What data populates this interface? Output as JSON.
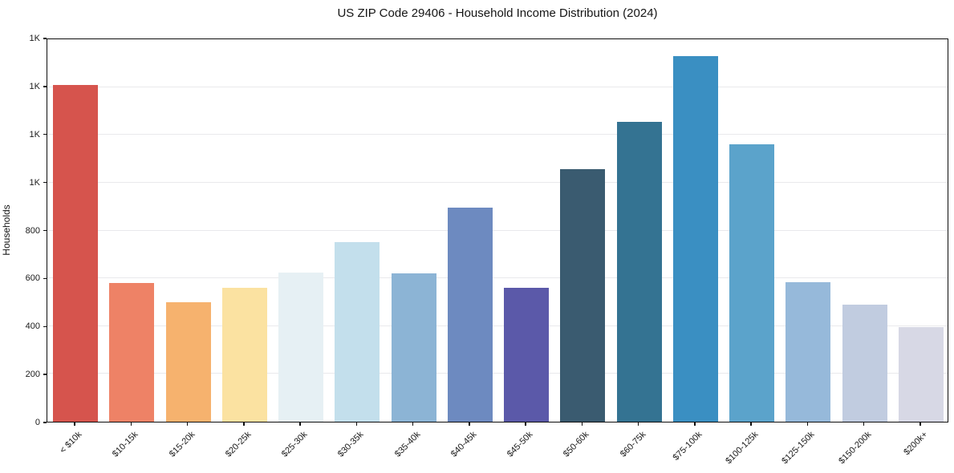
{
  "chart_data": {
    "type": "bar",
    "title": "US ZIP Code 29406 - Household Income Distribution (2024)",
    "xlabel": "",
    "ylabel": "Households",
    "categories": [
      "< $10k",
      "$10-15k",
      "$15-20k",
      "$20-25k",
      "$25-30k",
      "$30-35k",
      "$35-40k",
      "$40-45k",
      "$45-50k",
      "$50-60k",
      "$60-75k",
      "$75-100k",
      "$100-125k",
      "$125-150k",
      "$150-200k",
      "$200k+"
    ],
    "values": [
      1410,
      580,
      500,
      560,
      625,
      750,
      620,
      895,
      560,
      1055,
      1255,
      1530,
      1160,
      585,
      490,
      395
    ],
    "bar_colors": [
      "#d6544d",
      "#ee8266",
      "#f6b26e",
      "#fbe2a1",
      "#e6f0f4",
      "#c3dfec",
      "#8cb4d5",
      "#6d8ac0",
      "#5b59a9",
      "#3a5b70",
      "#347392",
      "#3a8fc2",
      "#5ba3cb",
      "#96b9da",
      "#c1cce0",
      "#d7d8e5"
    ],
    "ylim": [
      0,
      1600
    ],
    "ytick_values": [
      0,
      200,
      400,
      600,
      800,
      1000,
      1200,
      1400,
      1600
    ],
    "ytick_labels": [
      "0",
      "200",
      "400",
      "600",
      "800",
      "1K",
      "1K",
      "1K",
      "1K"
    ],
    "grid": "horizontal",
    "legend": "none"
  },
  "colors": {
    "background": "#ffffff",
    "grid": "#e9e9ec",
    "spine": "#0d0d0d",
    "text": "#1a1a1a"
  }
}
